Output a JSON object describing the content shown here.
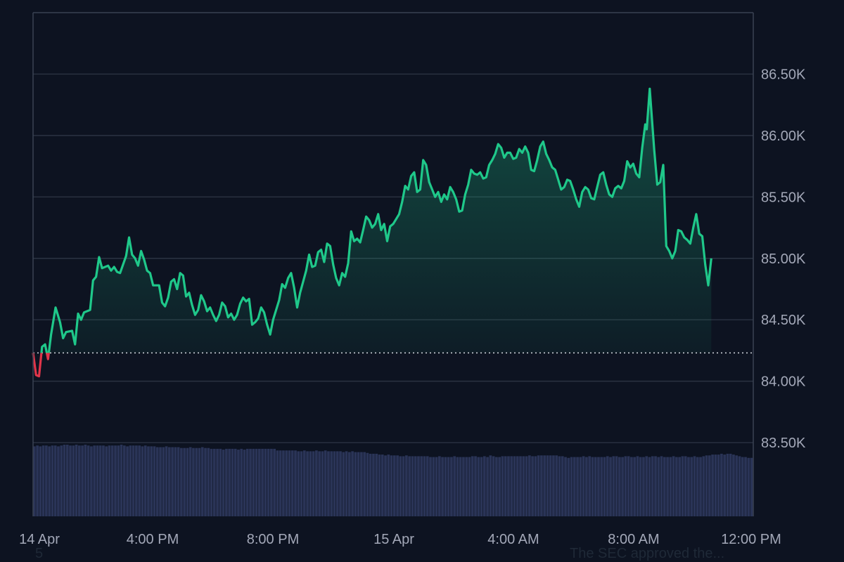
{
  "colors": {
    "background": "#0d1321",
    "grid": "#2b3342",
    "frame": "#3a4253",
    "up_line": "#1fc88a",
    "down_line": "#e0354a",
    "volume": "#2a3457",
    "baseline": "#d7dbe3",
    "tick_text": "#a3a8b8"
  },
  "chart_data": {
    "type": "area",
    "x_axis": {
      "ticks": [
        "14 Apr",
        "4:00 PM",
        "8:00 PM",
        "15 Apr",
        "4:00 AM",
        "8:00 AM",
        "12:00 PM"
      ]
    },
    "y_axis": {
      "range": [
        82900,
        87000
      ],
      "ticks": [
        {
          "value": 86500,
          "label": "86.50K"
        },
        {
          "value": 86000,
          "label": "86.00K"
        },
        {
          "value": 85500,
          "label": "85.50K"
        },
        {
          "value": 85000,
          "label": "85.00K"
        },
        {
          "value": 84500,
          "label": "84.50K"
        },
        {
          "value": 84000,
          "label": "84.00K"
        },
        {
          "value": 83500,
          "label": "83.50K"
        }
      ]
    },
    "baseline_price": 84230,
    "time_span_hours": 24,
    "price_series": [
      [
        0.0,
        84230
      ],
      [
        0.1,
        84050
      ],
      [
        0.2,
        84040
      ],
      [
        0.3,
        84280
      ],
      [
        0.4,
        84300
      ],
      [
        0.5,
        84180
      ],
      [
        0.6,
        84380
      ],
      [
        0.75,
        84600
      ],
      [
        0.9,
        84480
      ],
      [
        1.0,
        84350
      ],
      [
        1.1,
        84400
      ],
      [
        1.3,
        84410
      ],
      [
        1.4,
        84300
      ],
      [
        1.5,
        84550
      ],
      [
        1.6,
        84500
      ],
      [
        1.7,
        84560
      ],
      [
        1.9,
        84580
      ],
      [
        2.0,
        84820
      ],
      [
        2.1,
        84850
      ],
      [
        2.2,
        85010
      ],
      [
        2.3,
        84920
      ],
      [
        2.5,
        84940
      ],
      [
        2.6,
        84900
      ],
      [
        2.7,
        84930
      ],
      [
        2.8,
        84890
      ],
      [
        2.9,
        84880
      ],
      [
        3.0,
        84950
      ],
      [
        3.1,
        85020
      ],
      [
        3.2,
        85170
      ],
      [
        3.3,
        85030
      ],
      [
        3.4,
        85000
      ],
      [
        3.5,
        84940
      ],
      [
        3.6,
        85060
      ],
      [
        3.7,
        84990
      ],
      [
        3.8,
        84900
      ],
      [
        3.9,
        84880
      ],
      [
        4.0,
        84780
      ],
      [
        4.2,
        84780
      ],
      [
        4.3,
        84640
      ],
      [
        4.4,
        84610
      ],
      [
        4.5,
        84680
      ],
      [
        4.6,
        84810
      ],
      [
        4.7,
        84830
      ],
      [
        4.8,
        84750
      ],
      [
        4.9,
        84880
      ],
      [
        5.0,
        84860
      ],
      [
        5.1,
        84690
      ],
      [
        5.2,
        84720
      ],
      [
        5.3,
        84620
      ],
      [
        5.4,
        84540
      ],
      [
        5.5,
        84580
      ],
      [
        5.6,
        84700
      ],
      [
        5.7,
        84650
      ],
      [
        5.8,
        84570
      ],
      [
        5.9,
        84600
      ],
      [
        6.0,
        84540
      ],
      [
        6.1,
        84490
      ],
      [
        6.2,
        84540
      ],
      [
        6.3,
        84640
      ],
      [
        6.4,
        84610
      ],
      [
        6.5,
        84520
      ],
      [
        6.6,
        84550
      ],
      [
        6.7,
        84500
      ],
      [
        6.8,
        84540
      ],
      [
        6.9,
        84630
      ],
      [
        7.0,
        84680
      ],
      [
        7.1,
        84650
      ],
      [
        7.2,
        84670
      ],
      [
        7.3,
        84460
      ],
      [
        7.4,
        84480
      ],
      [
        7.5,
        84510
      ],
      [
        7.6,
        84600
      ],
      [
        7.7,
        84560
      ],
      [
        7.8,
        84460
      ],
      [
        7.9,
        84380
      ],
      [
        8.0,
        84500
      ],
      [
        8.2,
        84660
      ],
      [
        8.3,
        84790
      ],
      [
        8.4,
        84760
      ],
      [
        8.5,
        84840
      ],
      [
        8.6,
        84880
      ],
      [
        8.7,
        84760
      ],
      [
        8.8,
        84600
      ],
      [
        8.9,
        84720
      ],
      [
        9.0,
        84810
      ],
      [
        9.1,
        84900
      ],
      [
        9.2,
        85030
      ],
      [
        9.3,
        84930
      ],
      [
        9.4,
        84940
      ],
      [
        9.5,
        85050
      ],
      [
        9.6,
        85070
      ],
      [
        9.7,
        84970
      ],
      [
        9.8,
        85120
      ],
      [
        9.9,
        85100
      ],
      [
        10.0,
        84950
      ],
      [
        10.1,
        84840
      ],
      [
        10.2,
        84780
      ],
      [
        10.3,
        84880
      ],
      [
        10.4,
        84850
      ],
      [
        10.5,
        84960
      ],
      [
        10.6,
        85220
      ],
      [
        10.7,
        85140
      ],
      [
        10.8,
        85160
      ],
      [
        10.9,
        85130
      ],
      [
        11.0,
        85230
      ],
      [
        11.1,
        85340
      ],
      [
        11.2,
        85310
      ],
      [
        11.3,
        85250
      ],
      [
        11.4,
        85280
      ],
      [
        11.5,
        85360
      ],
      [
        11.6,
        85230
      ],
      [
        11.7,
        85280
      ],
      [
        11.8,
        85140
      ],
      [
        11.9,
        85260
      ],
      [
        12.0,
        85280
      ],
      [
        12.2,
        85360
      ],
      [
        12.3,
        85460
      ],
      [
        12.4,
        85590
      ],
      [
        12.5,
        85560
      ],
      [
        12.6,
        85670
      ],
      [
        12.7,
        85700
      ],
      [
        12.8,
        85540
      ],
      [
        12.9,
        85560
      ],
      [
        13.0,
        85800
      ],
      [
        13.1,
        85760
      ],
      [
        13.2,
        85620
      ],
      [
        13.3,
        85560
      ],
      [
        13.4,
        85500
      ],
      [
        13.5,
        85540
      ],
      [
        13.6,
        85460
      ],
      [
        13.7,
        85520
      ],
      [
        13.8,
        85480
      ],
      [
        13.9,
        85580
      ],
      [
        14.0,
        85540
      ],
      [
        14.1,
        85480
      ],
      [
        14.2,
        85380
      ],
      [
        14.3,
        85390
      ],
      [
        14.4,
        85520
      ],
      [
        14.5,
        85600
      ],
      [
        14.6,
        85720
      ],
      [
        14.7,
        85690
      ],
      [
        14.8,
        85680
      ],
      [
        14.9,
        85700
      ],
      [
        15.0,
        85650
      ],
      [
        15.1,
        85660
      ],
      [
        15.2,
        85760
      ],
      [
        15.3,
        85800
      ],
      [
        15.4,
        85850
      ],
      [
        15.5,
        85930
      ],
      [
        15.6,
        85900
      ],
      [
        15.7,
        85820
      ],
      [
        15.8,
        85860
      ],
      [
        15.9,
        85860
      ],
      [
        16.0,
        85810
      ],
      [
        16.1,
        85820
      ],
      [
        16.2,
        85890
      ],
      [
        16.3,
        85860
      ],
      [
        16.4,
        85910
      ],
      [
        16.5,
        85860
      ],
      [
        16.6,
        85720
      ],
      [
        16.7,
        85710
      ],
      [
        16.8,
        85800
      ],
      [
        16.9,
        85910
      ],
      [
        17.0,
        85950
      ],
      [
        17.1,
        85850
      ],
      [
        17.2,
        85800
      ],
      [
        17.3,
        85740
      ],
      [
        17.4,
        85720
      ],
      [
        17.5,
        85640
      ],
      [
        17.6,
        85560
      ],
      [
        17.7,
        85580
      ],
      [
        17.8,
        85640
      ],
      [
        17.9,
        85630
      ],
      [
        18.0,
        85560
      ],
      [
        18.1,
        85480
      ],
      [
        18.2,
        85420
      ],
      [
        18.3,
        85540
      ],
      [
        18.4,
        85580
      ],
      [
        18.5,
        85560
      ],
      [
        18.6,
        85490
      ],
      [
        18.7,
        85480
      ],
      [
        18.8,
        85580
      ],
      [
        18.9,
        85680
      ],
      [
        19.0,
        85700
      ],
      [
        19.1,
        85600
      ],
      [
        19.2,
        85520
      ],
      [
        19.3,
        85500
      ],
      [
        19.4,
        85570
      ],
      [
        19.5,
        85590
      ],
      [
        19.6,
        85570
      ],
      [
        19.7,
        85630
      ],
      [
        19.8,
        85790
      ],
      [
        19.9,
        85740
      ],
      [
        20.0,
        85770
      ],
      [
        20.1,
        85690
      ],
      [
        20.2,
        85660
      ],
      [
        20.3,
        85900
      ],
      [
        20.4,
        86090
      ],
      [
        20.45,
        86050
      ],
      [
        20.55,
        86380
      ],
      [
        20.7,
        85880
      ],
      [
        20.8,
        85600
      ],
      [
        20.9,
        85620
      ],
      [
        21.0,
        85760
      ],
      [
        21.1,
        85100
      ],
      [
        21.2,
        85060
      ],
      [
        21.3,
        85000
      ],
      [
        21.4,
        85060
      ],
      [
        21.5,
        85230
      ],
      [
        21.6,
        85220
      ],
      [
        21.7,
        85170
      ],
      [
        21.8,
        85150
      ],
      [
        21.9,
        85120
      ],
      [
        22.0,
        85250
      ],
      [
        22.1,
        85360
      ],
      [
        22.2,
        85200
      ],
      [
        22.3,
        85180
      ],
      [
        22.4,
        84950
      ],
      [
        22.5,
        84780
      ],
      [
        22.6,
        85000
      ]
    ],
    "volume_series": [
      0.85,
      0.86,
      0.85,
      0.86,
      0.86,
      0.85,
      0.86,
      0.86,
      0.85,
      0.86,
      0.87,
      0.87,
      0.86,
      0.86,
      0.87,
      0.86,
      0.86,
      0.87,
      0.86,
      0.85,
      0.86,
      0.86,
      0.86,
      0.86,
      0.85,
      0.86,
      0.86,
      0.86,
      0.86,
      0.87,
      0.86,
      0.85,
      0.86,
      0.86,
      0.86,
      0.86,
      0.85,
      0.86,
      0.85,
      0.85,
      0.85,
      0.84,
      0.84,
      0.84,
      0.85,
      0.84,
      0.84,
      0.84,
      0.84,
      0.83,
      0.83,
      0.83,
      0.84,
      0.83,
      0.83,
      0.83,
      0.84,
      0.83,
      0.83,
      0.82,
      0.82,
      0.82,
      0.82,
      0.81,
      0.82,
      0.82,
      0.82,
      0.82,
      0.81,
      0.82,
      0.81,
      0.82,
      0.82,
      0.82,
      0.82,
      0.82,
      0.82,
      0.82,
      0.82,
      0.82,
      0.82,
      0.8,
      0.8,
      0.8,
      0.8,
      0.8,
      0.8,
      0.8,
      0.79,
      0.79,
      0.8,
      0.79,
      0.79,
      0.79,
      0.8,
      0.79,
      0.79,
      0.8,
      0.79,
      0.79,
      0.79,
      0.79,
      0.79,
      0.78,
      0.79,
      0.78,
      0.79,
      0.78,
      0.78,
      0.78,
      0.78,
      0.77,
      0.76,
      0.76,
      0.76,
      0.75,
      0.75,
      0.74,
      0.75,
      0.74,
      0.74,
      0.74,
      0.73,
      0.73,
      0.74,
      0.73,
      0.73,
      0.73,
      0.73,
      0.73,
      0.73,
      0.73,
      0.72,
      0.72,
      0.72,
      0.73,
      0.72,
      0.72,
      0.72,
      0.72,
      0.73,
      0.72,
      0.72,
      0.72,
      0.72,
      0.72,
      0.73,
      0.73,
      0.72,
      0.72,
      0.73,
      0.72,
      0.74,
      0.73,
      0.72,
      0.72,
      0.73,
      0.73,
      0.73,
      0.73,
      0.73,
      0.73,
      0.73,
      0.73,
      0.73,
      0.74,
      0.73,
      0.73,
      0.74,
      0.74,
      0.74,
      0.74,
      0.74,
      0.74,
      0.74,
      0.73,
      0.73,
      0.72,
      0.71,
      0.72,
      0.72,
      0.72,
      0.72,
      0.73,
      0.72,
      0.73,
      0.72,
      0.72,
      0.72,
      0.72,
      0.72,
      0.73,
      0.72,
      0.73,
      0.73,
      0.72,
      0.72,
      0.73,
      0.73,
      0.72,
      0.72,
      0.73,
      0.72,
      0.72,
      0.73,
      0.72,
      0.73,
      0.73,
      0.72,
      0.73,
      0.72,
      0.72,
      0.72,
      0.73,
      0.72,
      0.72,
      0.73,
      0.73,
      0.72,
      0.72,
      0.73,
      0.72,
      0.72,
      0.73,
      0.74,
      0.74,
      0.75,
      0.75,
      0.75,
      0.76,
      0.75,
      0.76,
      0.76,
      0.75,
      0.74,
      0.73,
      0.72,
      0.72,
      0.71,
      0.71
    ]
  },
  "footer": {
    "left_text": "5",
    "right_text": "The SEC approved the..."
  }
}
